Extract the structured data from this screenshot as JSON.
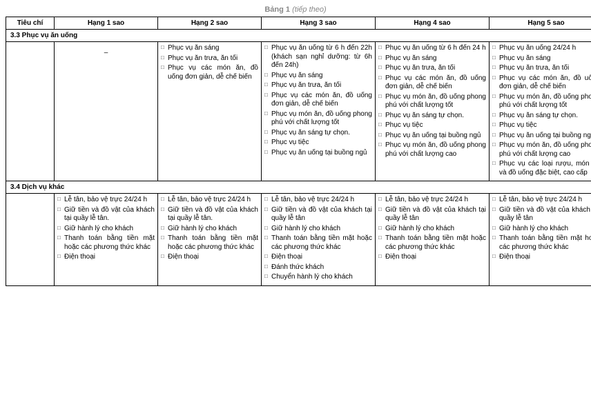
{
  "caption_main": "Bảng 1",
  "caption_cont": "(tiếp theo)",
  "headers": [
    "Tiêu chí",
    "Hạng 1 sao",
    "Hạng 2 sao",
    "Hạng 3 sao",
    "Hạng 4 sao",
    "Hạng 5 sao"
  ],
  "section33": {
    "title": "3.3 Phục vụ ăn uống",
    "col1_text": "–",
    "col2": [
      "Phục vụ ăn sáng",
      "Phục vụ ăn trưa, ăn tối",
      "Phục vụ các món ăn, đồ uống đơn giản, dễ chế biến"
    ],
    "col3": [
      "Phục vụ ăn uống từ 6 h đến 22h (khách sạn nghỉ dưỡng: từ 6h đến 24h)",
      "Phục vụ ăn sáng",
      "Phục vụ ăn trưa, ăn tối",
      "Phục vụ các món ăn, đồ uống đơn giản, dễ chế biến",
      "Phục vụ món ăn, đồ uống phong phú với chất lượng tốt",
      "Phục vụ ăn sáng tự chọn.",
      "Phục vụ tiệc",
      "Phục vụ ăn uống tại buồng ngủ"
    ],
    "col4": [
      "Phục vụ ăn uống từ 6 h đến 24 h",
      "Phục vụ ăn sáng",
      "Phục vụ ăn trưa, ăn tối",
      "Phục vụ các món ăn, đồ uống đơn giản, dễ chế biến",
      "Phục vụ món ăn, đồ uống phong phú với chất lượng tốt",
      "Phục vụ ăn sáng tự chọn.",
      "Phục vụ tiệc",
      "Phục vụ ăn uống tại buồng ngủ",
      "Phục vụ món ăn, đồ uống phong phú với chất lượng cao"
    ],
    "col5": [
      "Phục vụ ăn uống 24/24 h",
      "Phục vụ ăn sáng",
      "Phục vụ ăn trưa, ăn tối",
      "Phục vụ các món ăn, đồ uống đơn giản, dễ chế biến",
      "Phục vụ món ăn, đồ uống phong phú với chất lượng tốt",
      "Phục vụ ăn sáng tự chọn.",
      "Phục vụ tiệc",
      "Phục vụ ăn uống tại buồng ngủ",
      "Phục vụ món ăn, đồ uống phong phú với chất lượng cao",
      "Phục vụ các loại rượu, món ăn và đồ uống đặc biệt, cao cấp"
    ]
  },
  "section34": {
    "title": "3.4 Dịch vụ khác",
    "col1": [
      "Lễ tân, bảo vệ trực 24/24 h",
      "Giữ tiền và đồ vật của khách tại quầy lễ tân.",
      "Giữ hành lý cho khách",
      "Thanh toán bằng tiền mặt hoặc các phương thức khác",
      "Điện thoại"
    ],
    "col2": [
      "Lễ tân, bảo vệ trực 24/24 h",
      "Giữ tiền và đồ vật của khách tại quầy lễ tân.",
      "Giữ hành lý cho khách",
      "Thanh toán bằng tiền mặt hoặc các phương thức khác",
      "Điện thoại"
    ],
    "col3": [
      "Lễ tân, bảo vệ trực 24/24 h",
      "Giữ tiền và đồ vật của khách tại quầy lễ tân",
      "Giữ hành lý cho khách",
      "Thanh toán bằng tiền mặt hoặc các phương thức khác",
      "Điện thoại",
      "Đánh thức khách",
      "Chuyển hành lý cho khách"
    ],
    "col4": [
      "Lễ tân, bảo vệ trực 24/24 h",
      "Giữ tiền và đồ vật của khách tại quầy lễ tân",
      "Giữ hành lý cho khách",
      "Thanh toán bằng tiền mặt hoặc các phương thức khác",
      "Điện thoại"
    ],
    "col5": [
      "Lễ tân, bảo vệ trực 24/24 h",
      "Giữ tiền và đồ vật của khách tại quầy lễ tân",
      "Giữ hành lý cho khách",
      "Thanh toán bằng tiền mặt hoặc các phương thức khác",
      "Điện thoại"
    ]
  }
}
